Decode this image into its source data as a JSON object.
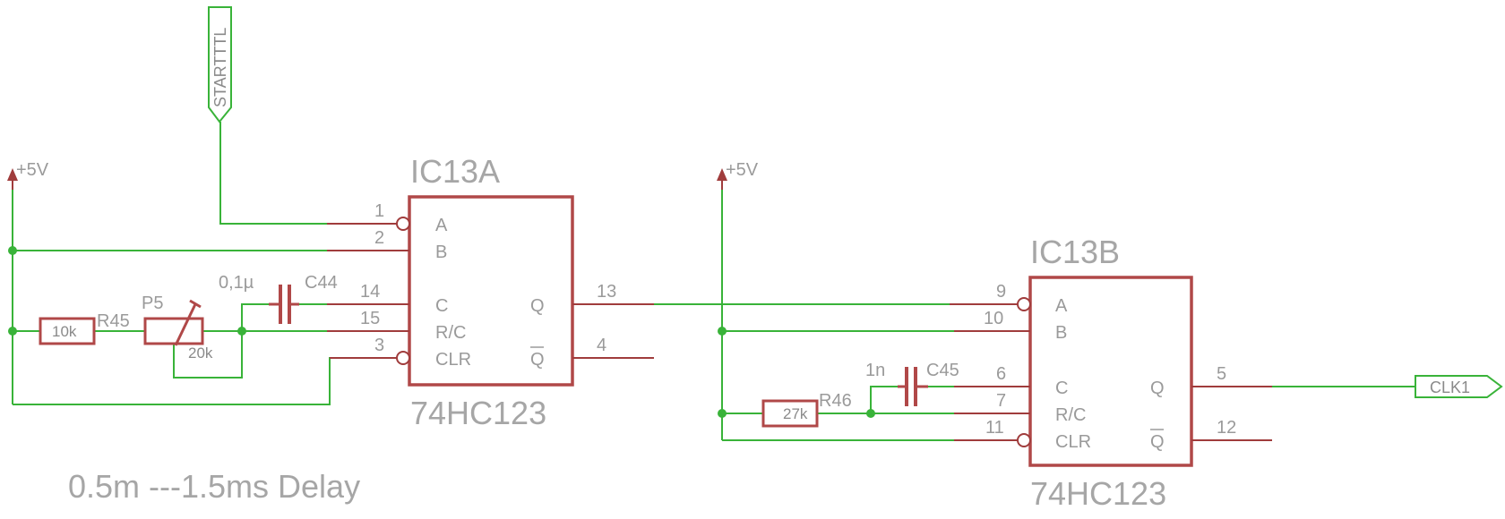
{
  "ic13a": {
    "name": "IC13A",
    "part": "74HC123",
    "pins": {
      "p1": "1",
      "p2": "2",
      "p14": "14",
      "p15": "15",
      "p3": "3",
      "p13": "13",
      "p4": "4"
    },
    "labels": {
      "a": "A",
      "b": "B",
      "c": "C",
      "rc": "R/C",
      "clr": "CLR",
      "q": "Q",
      "qbar": "Q"
    }
  },
  "ic13b": {
    "name": "IC13B",
    "part": "74HC123",
    "pins": {
      "p9": "9",
      "p10": "10",
      "p6": "6",
      "p7": "7",
      "p11": "11",
      "p5": "5",
      "p12": "12"
    },
    "labels": {
      "a": "A",
      "b": "B",
      "c": "C",
      "rc": "R/C",
      "clr": "CLR",
      "q": "Q",
      "qbar": "Q"
    }
  },
  "r45": {
    "name": "R45",
    "value": "10k"
  },
  "p5": {
    "name": "P5",
    "value": "20k"
  },
  "c44": {
    "name": "C44",
    "value": "0,1µ"
  },
  "r46": {
    "name": "R46",
    "value": "27k"
  },
  "c45": {
    "name": "C45",
    "value": "1n"
  },
  "supply_left": "+5V",
  "supply_right": "+5V",
  "start_label": "STARTTTL",
  "clk_label": "CLK1",
  "delay_note": "0.5m ---1.5ms Delay",
  "colors": {
    "net": "#39b339",
    "component": "#b04848",
    "text": "#9a9a9a"
  }
}
